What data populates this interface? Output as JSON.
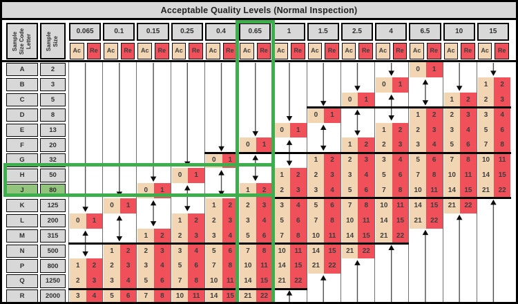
{
  "title": "Acceptable Quality Levels (Normal Inspection)",
  "left_headers": {
    "code_letter_lines": "Sample\nSize Code\nLetter",
    "sample_size_lines": "Sample\nSize"
  },
  "sub_headers": {
    "accept": "Ac",
    "reject": "Re"
  },
  "rows": [
    {
      "letter": "A",
      "size": "2"
    },
    {
      "letter": "B",
      "size": "3"
    },
    {
      "letter": "C",
      "size": "5"
    },
    {
      "letter": "D",
      "size": "8"
    },
    {
      "letter": "E",
      "size": "13"
    },
    {
      "letter": "F",
      "size": "20"
    },
    {
      "letter": "G",
      "size": "32"
    },
    {
      "letter": "H",
      "size": "50"
    },
    {
      "letter": "J",
      "size": "80"
    },
    {
      "letter": "K",
      "size": "125"
    },
    {
      "letter": "L",
      "size": "200"
    },
    {
      "letter": "M",
      "size": "315"
    },
    {
      "letter": "N",
      "size": "500"
    },
    {
      "letter": "P",
      "size": "800"
    },
    {
      "letter": "Q",
      "size": "1250"
    },
    {
      "letter": "R",
      "size": "2000"
    }
  ],
  "columns": [
    {
      "label": "0.065",
      "down": [
        "A",
        "K"
      ],
      "double": [
        "M",
        "N"
      ],
      "up": null,
      "pairs": [
        [
          "L",
          0,
          1
        ],
        [
          "P",
          1,
          2
        ],
        [
          "Q",
          2,
          3
        ],
        [
          "R",
          3,
          4
        ]
      ]
    },
    {
      "label": "0.1",
      "down": [
        "A",
        "J"
      ],
      "double": [
        "L",
        "M"
      ],
      "up": null,
      "pairs": [
        [
          "K",
          0,
          1
        ],
        [
          "N",
          1,
          2
        ],
        [
          "P",
          2,
          3
        ],
        [
          "Q",
          3,
          4
        ],
        [
          "R",
          5,
          6
        ]
      ]
    },
    {
      "label": "0.15",
      "down": [
        "A",
        "H"
      ],
      "double": [
        "K",
        "L"
      ],
      "up": null,
      "pairs": [
        [
          "J",
          0,
          1
        ],
        [
          "M",
          1,
          2
        ],
        [
          "N",
          2,
          3
        ],
        [
          "P",
          3,
          4
        ],
        [
          "Q",
          5,
          6
        ],
        [
          "R",
          7,
          8
        ]
      ]
    },
    {
      "label": "0.25",
      "down": [
        "A",
        "G"
      ],
      "double": [
        "J",
        "K"
      ],
      "up": null,
      "pairs": [
        [
          "H",
          0,
          1
        ],
        [
          "L",
          1,
          2
        ],
        [
          "M",
          2,
          3
        ],
        [
          "N",
          3,
          4
        ],
        [
          "P",
          5,
          6
        ],
        [
          "Q",
          7,
          8
        ],
        [
          "R",
          10,
          11
        ]
      ]
    },
    {
      "label": "0.4",
      "down": [
        "A",
        "F"
      ],
      "double": [
        "H",
        "J"
      ],
      "up": null,
      "pairs": [
        [
          "G",
          0,
          1
        ],
        [
          "K",
          1,
          2
        ],
        [
          "L",
          2,
          3
        ],
        [
          "M",
          3,
          4
        ],
        [
          "N",
          5,
          6
        ],
        [
          "P",
          7,
          8
        ],
        [
          "Q",
          10,
          11
        ],
        [
          "R",
          14,
          15
        ]
      ]
    },
    {
      "label": "0.65",
      "down": [
        "A",
        "E"
      ],
      "double": [
        "G",
        "H"
      ],
      "up": null,
      "pairs": [
        [
          "F",
          0,
          1
        ],
        [
          "J",
          1,
          2
        ],
        [
          "K",
          2,
          3
        ],
        [
          "L",
          3,
          4
        ],
        [
          "M",
          5,
          6
        ],
        [
          "N",
          7,
          8
        ],
        [
          "P",
          10,
          11
        ],
        [
          "Q",
          14,
          15
        ],
        [
          "R",
          21,
          22
        ]
      ]
    },
    {
      "label": "1",
      "down": [
        "A",
        "D"
      ],
      "double": [
        "F",
        "G"
      ],
      "up": "R",
      "pairs": [
        [
          "E",
          0,
          1
        ],
        [
          "H",
          1,
          2
        ],
        [
          "J",
          2,
          3
        ],
        [
          "K",
          3,
          4
        ],
        [
          "L",
          5,
          6
        ],
        [
          "M",
          7,
          8
        ],
        [
          "N",
          10,
          11
        ],
        [
          "P",
          14,
          15
        ],
        [
          "Q",
          21,
          22
        ]
      ]
    },
    {
      "label": "1.5",
      "down": [
        "A",
        "C"
      ],
      "double": [
        "E",
        "F"
      ],
      "up": "Q",
      "pairs": [
        [
          "D",
          0,
          1
        ],
        [
          "G",
          1,
          2
        ],
        [
          "H",
          2,
          3
        ],
        [
          "J",
          3,
          4
        ],
        [
          "K",
          5,
          6
        ],
        [
          "L",
          7,
          8
        ],
        [
          "M",
          10,
          11
        ],
        [
          "N",
          14,
          15
        ],
        [
          "P",
          21,
          22
        ]
      ]
    },
    {
      "label": "2.5",
      "down": [
        "A",
        "B"
      ],
      "double": [
        "D",
        "E"
      ],
      "up": "P",
      "pairs": [
        [
          "C",
          0,
          1
        ],
        [
          "F",
          1,
          2
        ],
        [
          "G",
          2,
          3
        ],
        [
          "H",
          3,
          4
        ],
        [
          "J",
          5,
          6
        ],
        [
          "K",
          7,
          8
        ],
        [
          "L",
          10,
          11
        ],
        [
          "M",
          14,
          15
        ],
        [
          "N",
          21,
          22
        ]
      ]
    },
    {
      "label": "4",
      "down": [
        "A",
        "A"
      ],
      "double": [
        "C",
        "D"
      ],
      "up": "N",
      "pairs": [
        [
          "B",
          0,
          1
        ],
        [
          "E",
          1,
          2
        ],
        [
          "F",
          2,
          3
        ],
        [
          "G",
          3,
          4
        ],
        [
          "H",
          5,
          6
        ],
        [
          "J",
          7,
          8
        ],
        [
          "K",
          10,
          11
        ],
        [
          "L",
          14,
          15
        ],
        [
          "M",
          21,
          22
        ]
      ]
    },
    {
      "label": "6.5",
      "down": null,
      "double": [
        "B",
        "C"
      ],
      "up": "M",
      "pairs": [
        [
          "A",
          0,
          1
        ],
        [
          "D",
          1,
          2
        ],
        [
          "E",
          2,
          3
        ],
        [
          "F",
          3,
          4
        ],
        [
          "G",
          5,
          6
        ],
        [
          "H",
          7,
          8
        ],
        [
          "J",
          10,
          11
        ],
        [
          "K",
          14,
          15
        ],
        [
          "L",
          21,
          22
        ]
      ]
    },
    {
      "label": "10",
      "down": [
        "A",
        "B"
      ],
      "double": null,
      "up": "L",
      "pairs": [
        [
          "C",
          1,
          2
        ],
        [
          "D",
          2,
          3
        ],
        [
          "E",
          3,
          4
        ],
        [
          "F",
          5,
          6
        ],
        [
          "G",
          7,
          8
        ],
        [
          "H",
          10,
          11
        ],
        [
          "J",
          14,
          15
        ],
        [
          "K",
          21,
          22
        ]
      ]
    },
    {
      "label": "15",
      "down": [
        "A",
        "A"
      ],
      "double": null,
      "up": "K",
      "pairs": [
        [
          "B",
          1,
          2
        ],
        [
          "C",
          2,
          3
        ],
        [
          "D",
          3,
          4
        ],
        [
          "E",
          5,
          6
        ],
        [
          "F",
          7,
          8
        ],
        [
          "G",
          10,
          11
        ],
        [
          "H",
          14,
          15
        ],
        [
          "J",
          21,
          22
        ]
      ]
    }
  ],
  "step_lines": [
    {
      "above_row": "D",
      "from_col": "1.5",
      "to_col": "15"
    },
    {
      "above_row": "G",
      "from_col": "0.4",
      "to_col": "15"
    },
    {
      "above_row": "K",
      "from_col": "1",
      "to_col": "15"
    },
    {
      "above_row": "N",
      "from_col": "0.065",
      "to_col": "4"
    },
    {
      "above_row": "R",
      "from_col": "0.065",
      "to_col": "1"
    }
  ],
  "highlights": {
    "column": "0.65",
    "rows": [
      "H",
      "J"
    ],
    "filled_row": "J"
  },
  "colors": {
    "header_bg": "#d8d8d8",
    "accept_bg": "#f2d6b3",
    "reject_bg": "#f0505a",
    "highlight_green": "#3cae4c",
    "highlight_row_bg": "#93c47d",
    "arrow_line": "#4d4d4d",
    "arrow_head": "#0d0d0d"
  }
}
